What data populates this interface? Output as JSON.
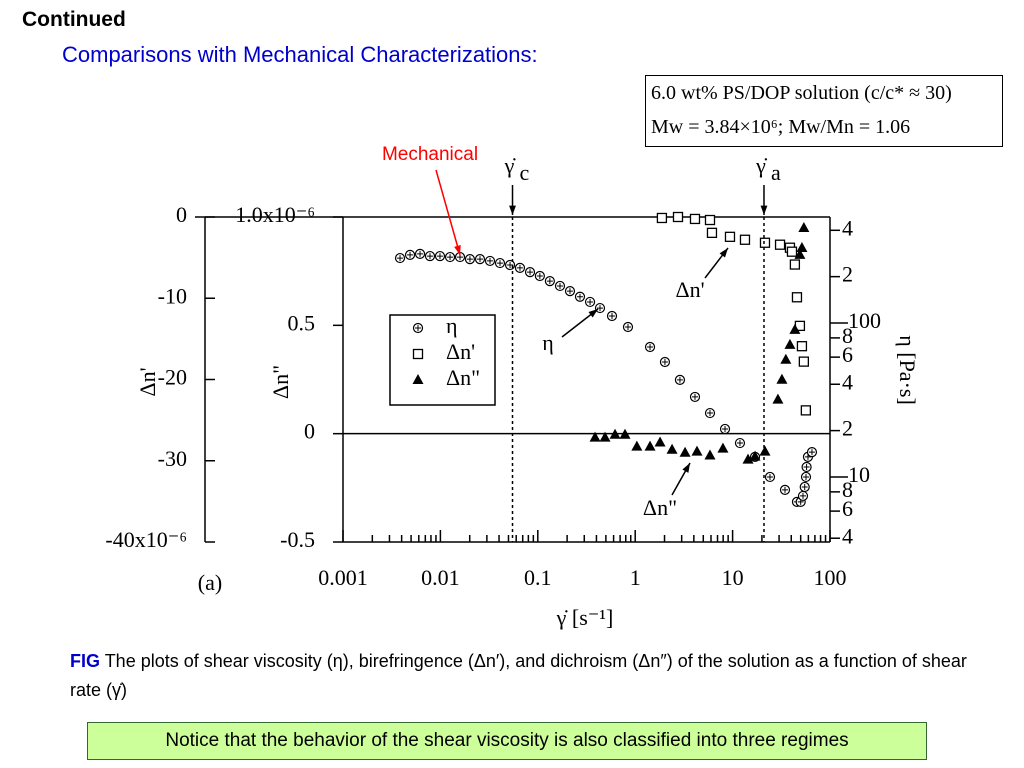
{
  "slide": {
    "heading": "Continued",
    "subheading": "Comparisons with Mechanical Characterizations:",
    "info_box": [
      "6.0 wt% PS/DOP solution (c/c* ≈ 30)",
      "Mw = 3.84×10⁶; Mw/Mn = 1.06"
    ],
    "caption_label": "FIG",
    "caption": "The plots of shear viscosity (η), birefringence (Δn′), and dichroism (Δn″) of the solution as a function of shear rate (γ̇)",
    "notice": "Notice that the behavior of the shear viscosity is also classified into three regimes"
  },
  "chart_data": {
    "type": "scatter",
    "xlog": true,
    "xlim": [
      0.001,
      100
    ],
    "xticks": [
      0.001,
      0.01,
      0.1,
      1,
      10,
      100
    ],
    "xlabel": "γ̇ [s⁻¹]",
    "panel_label": "(a)",
    "ylim": [
      -0.5,
      1.0
    ],
    "yticks": [
      -0.5,
      0,
      0.5,
      {
        "value": 1.0,
        "label": "1.0x10⁻⁶"
      }
    ],
    "ylabel": "Δn\"",
    "y2log": true,
    "y2lim": [
      3.78,
      488
    ],
    "y2label": "η [Pa·s]",
    "y2ticks": [
      {
        "value": 400,
        "label": "4"
      },
      {
        "value": 200,
        "label": "2"
      },
      100,
      {
        "value": 80,
        "label": "8"
      },
      {
        "value": 60,
        "label": "6"
      },
      {
        "value": 40,
        "label": "4"
      },
      {
        "value": 20,
        "label": "2"
      },
      10,
      {
        "value": 8,
        "label": "8"
      },
      {
        "value": 6,
        "label": "6"
      },
      {
        "value": 4,
        "label": "4"
      }
    ],
    "y3lim": [
      -40,
      0
    ],
    "y3ticks": [
      {
        "value": -40,
        "label": "-40x10⁻⁶"
      },
      -30,
      -20,
      -10,
      0
    ],
    "y3label": "Δn'",
    "series": [
      {
        "name": "η",
        "marker": "circle-plus",
        "color": "#000000",
        "axis": "y2",
        "x": [
          0.00385,
          0.00488,
          0.00618,
          0.00782,
          0.0099,
          0.01256,
          0.0159,
          0.0201,
          0.0255,
          0.0323,
          0.0409,
          0.0519,
          0.0656,
          0.0832,
          0.105,
          0.133,
          0.169,
          0.214,
          0.271,
          0.344,
          0.435,
          0.578,
          0.843,
          1.42,
          2.02,
          2.88,
          4.11,
          5.86,
          8.36,
          11.9,
          17.0,
          24.2,
          34.5,
          45.8,
          50,
          52.8,
          55,
          56.7,
          57.5,
          59.4,
          65.3
        ],
        "values": [
          264,
          277,
          281,
          272,
          272,
          268,
          268,
          260,
          260,
          253,
          245,
          238,
          228,
          214,
          202,
          187,
          174,
          161,
          148,
          137,
          125,
          111,
          94.2,
          69.8,
          55.8,
          42.7,
          33.1,
          26.0,
          20.5,
          16.6,
          13.5,
          10,
          8.24,
          6.89,
          6.89,
          7.53,
          8.61,
          10,
          11.6,
          13.5,
          14.5
        ]
      },
      {
        "name": "Δn'",
        "marker": "square",
        "color": "#000000",
        "axis": "y3",
        "x": [
          1.88,
          2.75,
          4.11,
          5.86,
          6.14,
          9.4,
          13.4,
          21.5,
          30.7,
          38.8,
          40.7,
          43.6,
          45.8,
          49.1,
          51.5,
          53.9,
          56.5
        ],
        "values": [
          -0.12,
          0,
          -0.24,
          -0.37,
          -1.95,
          -2.44,
          -2.8,
          -3.17,
          -3.41,
          -3.78,
          -4.27,
          -5.85,
          -9.88,
          -13.4,
          -15.9,
          -17.8,
          -23.8
        ]
      },
      {
        "name": "Δn\"",
        "marker": "triangle",
        "color": "#000000",
        "axis": "y",
        "x": [
          0.387,
          0.49,
          0.621,
          0.786,
          1.04,
          1.42,
          1.8,
          2.39,
          3.25,
          4.31,
          5.86,
          7.96,
          14.4,
          17.0,
          21.5,
          29.2,
          32.1,
          35.2,
          38.8,
          43.6,
          49.1,
          51.5,
          53.9
        ],
        "values": [
          -0.018,
          -0.018,
          -0.005,
          -0.005,
          -0.06,
          -0.06,
          -0.041,
          -0.074,
          -0.088,
          -0.083,
          -0.101,
          -0.069,
          -0.12,
          -0.106,
          -0.083,
          0.157,
          0.249,
          0.341,
          0.41,
          0.479,
          0.825,
          0.857,
          0.949
        ]
      }
    ],
    "annotations": {
      "mechanical": {
        "text": "Mechanical",
        "color": "#ff0000"
      },
      "rates": [
        {
          "symbol": "γ̇",
          "sub": "c",
          "x": 0.055
        },
        {
          "symbol": "γ̇",
          "sub": "a",
          "x": 21
        }
      ],
      "callouts": [
        "Δn'",
        "η",
        "Δn\""
      ]
    }
  }
}
